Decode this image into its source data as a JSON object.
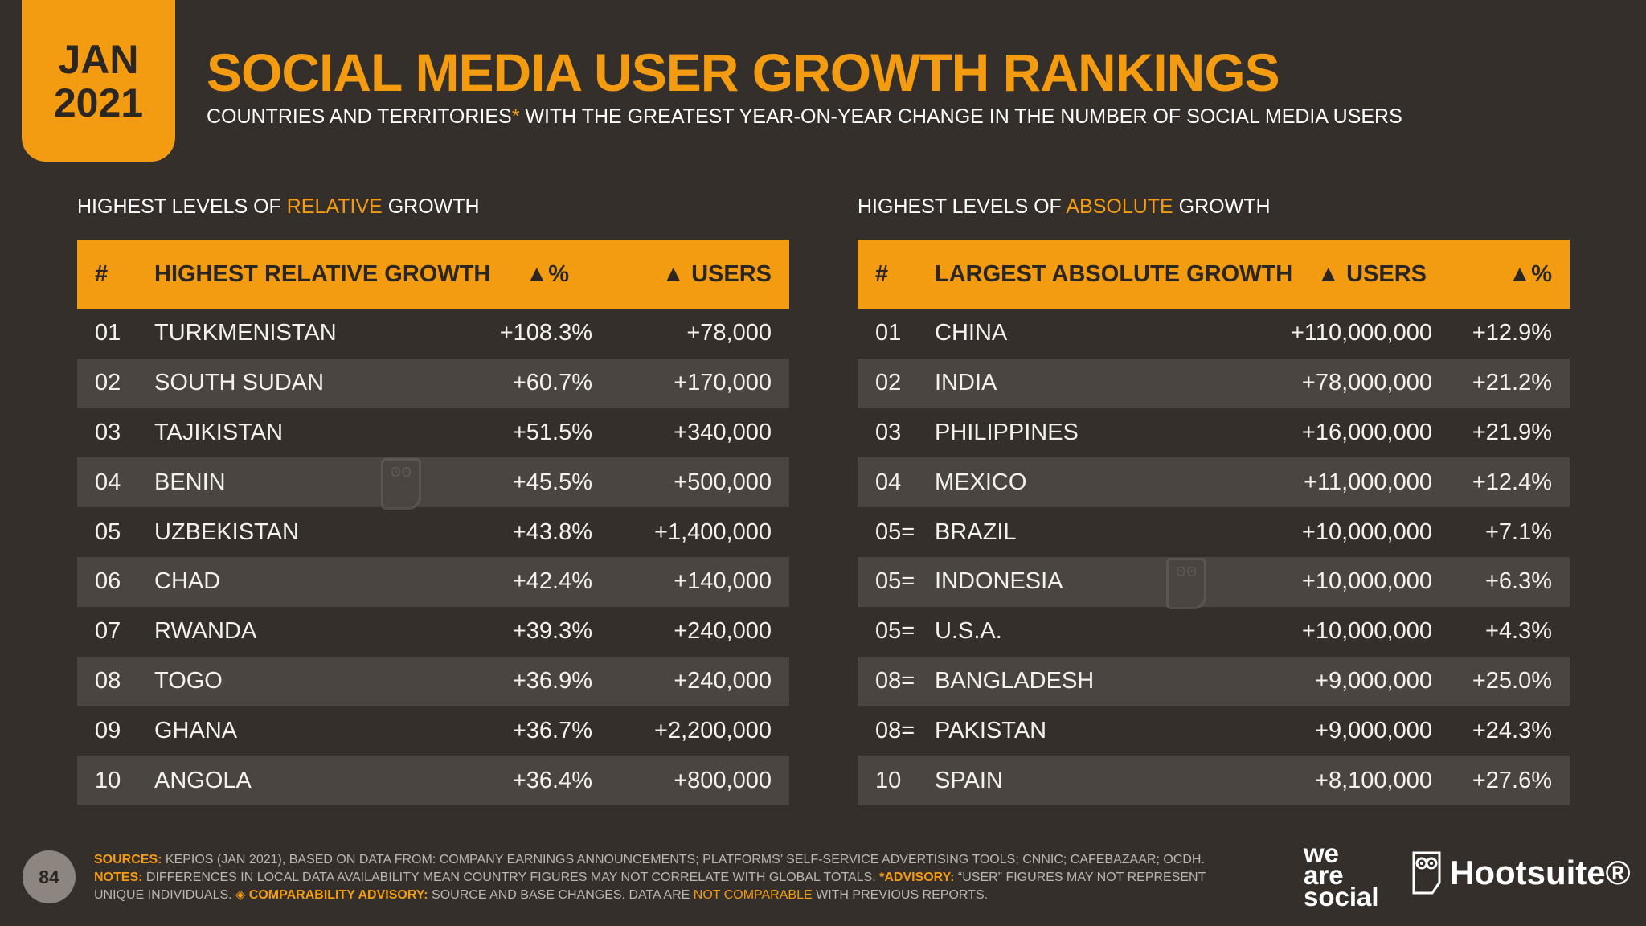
{
  "badge": {
    "month": "JAN",
    "year": "2021"
  },
  "title": "SOCIAL MEDIA USER GROWTH RANKINGS",
  "subtitle": {
    "pre": "COUNTRIES AND TERRITORIES",
    "star": "*",
    "post": " WITH THE GREATEST YEAR-ON-YEAR CHANGE IN THE NUMBER OF SOCIAL MEDIA USERS"
  },
  "relative": {
    "label": {
      "pre": "HIGHEST LEVELS OF ",
      "hl": "RELATIVE",
      "post": " GROWTH"
    },
    "headers": {
      "rank": "#",
      "name": "HIGHEST RELATIVE GROWTH",
      "c3": "▲%",
      "c4": "▲ USERS"
    },
    "rows": [
      {
        "rank": "01",
        "name": "TURKMENISTAN",
        "c3": "+108.3%",
        "c4": "+78,000"
      },
      {
        "rank": "02",
        "name": "SOUTH SUDAN",
        "c3": "+60.7%",
        "c4": "+170,000"
      },
      {
        "rank": "03",
        "name": "TAJIKISTAN",
        "c3": "+51.5%",
        "c4": "+340,000"
      },
      {
        "rank": "04",
        "name": "BENIN",
        "c3": "+45.5%",
        "c4": "+500,000"
      },
      {
        "rank": "05",
        "name": "UZBEKISTAN",
        "c3": "+43.8%",
        "c4": "+1,400,000"
      },
      {
        "rank": "06",
        "name": "CHAD",
        "c3": "+42.4%",
        "c4": "+140,000"
      },
      {
        "rank": "07",
        "name": "RWANDA",
        "c3": "+39.3%",
        "c4": "+240,000"
      },
      {
        "rank": "08",
        "name": "TOGO",
        "c3": "+36.9%",
        "c4": "+240,000"
      },
      {
        "rank": "09",
        "name": "GHANA",
        "c3": "+36.7%",
        "c4": "+2,200,000"
      },
      {
        "rank": "10",
        "name": "ANGOLA",
        "c3": "+36.4%",
        "c4": "+800,000"
      }
    ]
  },
  "absolute": {
    "label": {
      "pre": "HIGHEST LEVELS OF ",
      "hl": "ABSOLUTE",
      "post": " GROWTH"
    },
    "headers": {
      "rank": "#",
      "name": "LARGEST ABSOLUTE GROWTH",
      "c3": "▲ USERS",
      "c4": "▲%"
    },
    "rows": [
      {
        "rank": "01",
        "name": "CHINA",
        "c3": "+110,000,000",
        "c4": "+12.9%"
      },
      {
        "rank": "02",
        "name": "INDIA",
        "c3": "+78,000,000",
        "c4": "+21.2%"
      },
      {
        "rank": "03",
        "name": "PHILIPPINES",
        "c3": "+16,000,000",
        "c4": "+21.9%"
      },
      {
        "rank": "04",
        "name": "MEXICO",
        "c3": "+11,000,000",
        "c4": "+12.4%"
      },
      {
        "rank": "05=",
        "name": "BRAZIL",
        "c3": "+10,000,000",
        "c4": "+7.1%"
      },
      {
        "rank": "05=",
        "name": "INDONESIA",
        "c3": "+10,000,000",
        "c4": "+6.3%"
      },
      {
        "rank": "05=",
        "name": "U.S.A.",
        "c3": "+10,000,000",
        "c4": "+4.3%"
      },
      {
        "rank": "08=",
        "name": "BANGLADESH",
        "c3": "+9,000,000",
        "c4": "+25.0%"
      },
      {
        "rank": "08=",
        "name": "PAKISTAN",
        "c3": "+9,000,000",
        "c4": "+24.3%"
      },
      {
        "rank": "10",
        "name": "SPAIN",
        "c3": "+8,100,000",
        "c4": "+27.6%"
      }
    ]
  },
  "footer": {
    "page": "84",
    "sources_label": "SOURCES:",
    "sources_text": " KEPIOS (JAN 2021), BASED ON DATA FROM: COMPANY EARNINGS ANNOUNCEMENTS; PLATFORMS’ SELF-SERVICE ADVERTISING TOOLS; CNNIC; CAFEBAZAAR; OCDH.",
    "notes_label": "NOTES:",
    "notes_text": " DIFFERENCES IN LOCAL DATA AVAILABILITY MEAN COUNTRY FIGURES MAY NOT CORRELATE WITH GLOBAL TOTALS.",
    "advisory_label": " *ADVISORY:",
    "advisory_text": " “USER” FIGURES MAY NOT REPRESENT UNIQUE INDIVIDUALS.",
    "comparability_label": " ◈ COMPARABILITY ADVISORY:",
    "comparability_text": " SOURCE AND BASE CHANGES. DATA ARE ",
    "not_comparable": "NOT COMPARABLE",
    "comparability_end": " WITH PREVIOUS REPORTS."
  },
  "logos": {
    "was": [
      "we",
      "are",
      "social"
    ],
    "hootsuite": "Hootsuite®"
  },
  "colors": {
    "background": "#342f2b",
    "accent": "#f39c12",
    "row_alt": "#4a4541"
  },
  "icons": {
    "watermark": "owl-watermark-icon",
    "hootsuite": "owl-icon"
  }
}
